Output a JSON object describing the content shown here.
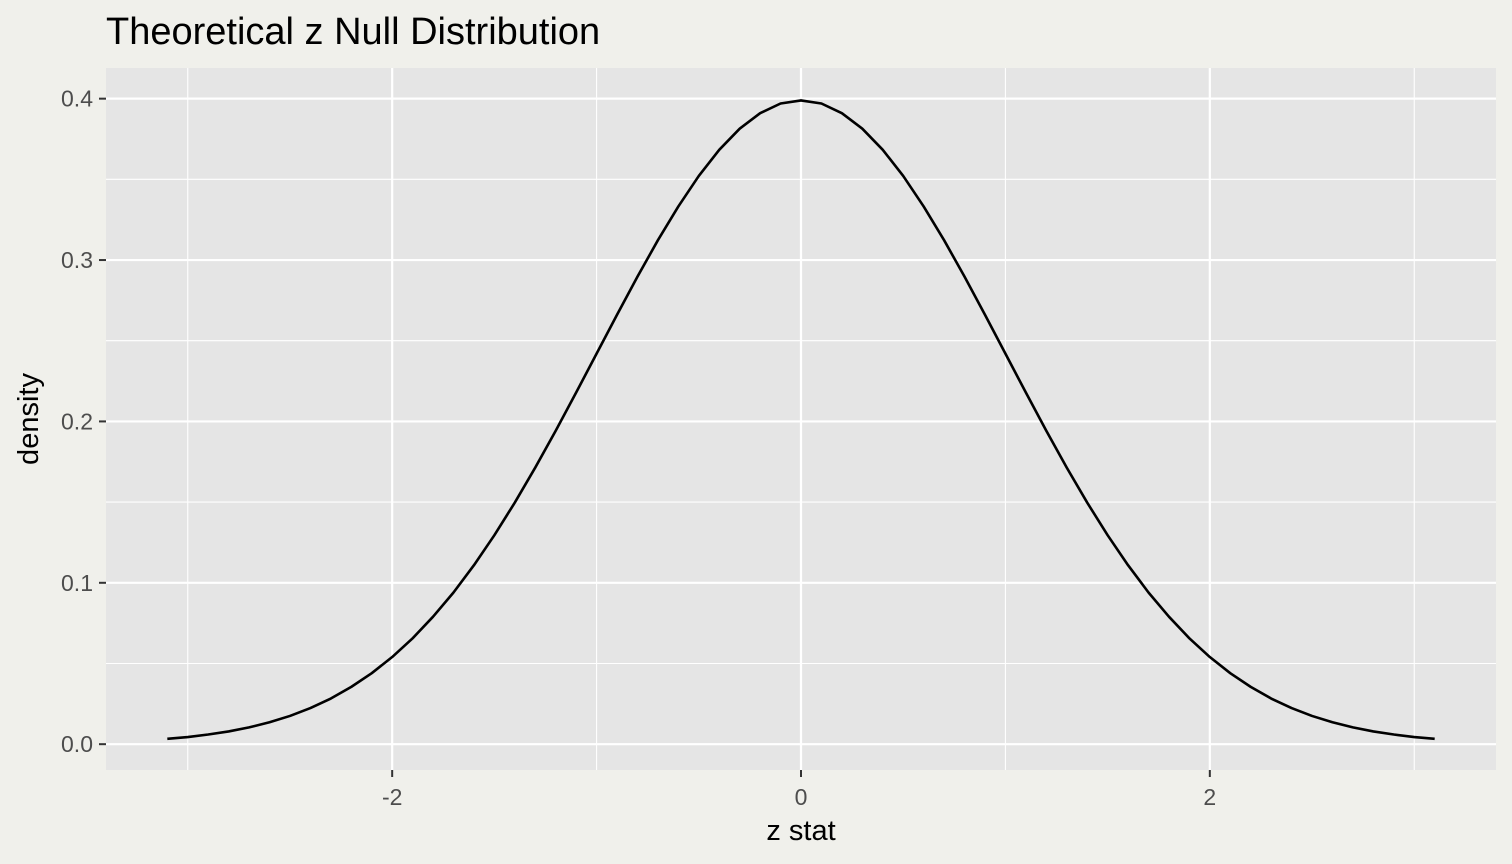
{
  "chart_data": {
    "type": "line",
    "title": "Theoretical z Null Distribution",
    "xlabel": "z stat",
    "ylabel": "density",
    "xlim": [
      -3.4,
      3.4
    ],
    "ylim": [
      -0.016,
      0.419
    ],
    "x_ticks": [
      -2,
      0,
      2
    ],
    "x_tick_labels": [
      "-2",
      "0",
      "2"
    ],
    "y_ticks": [
      0.0,
      0.1,
      0.2,
      0.3,
      0.4
    ],
    "y_tick_labels": [
      "0.0",
      "0.1",
      "0.2",
      "0.3",
      "0.4"
    ],
    "x_minor_ticks": [
      -3,
      -1,
      1,
      3
    ],
    "y_minor_ticks": [
      0.05,
      0.15,
      0.25,
      0.35
    ],
    "grid": true,
    "colors": {
      "panel": "#e5e5e5",
      "grid": "#ffffff",
      "line": "#000000",
      "background": "#f0f0eb"
    },
    "series": [
      {
        "x": [
          -3.1,
          -3.0,
          -2.9,
          -2.8,
          -2.7,
          -2.6,
          -2.5,
          -2.4,
          -2.3,
          -2.2,
          -2.1,
          -2.0,
          -1.9,
          -1.8,
          -1.7,
          -1.6,
          -1.5,
          -1.4,
          -1.3,
          -1.2,
          -1.1,
          -1.0,
          -0.9,
          -0.8,
          -0.7,
          -0.6,
          -0.5,
          -0.4,
          -0.3,
          -0.2,
          -0.1,
          0.0,
          0.1,
          0.2,
          0.3,
          0.4,
          0.5,
          0.6,
          0.7,
          0.8,
          0.9,
          1.0,
          1.1,
          1.2,
          1.3,
          1.4,
          1.5,
          1.6,
          1.7,
          1.8,
          1.9,
          2.0,
          2.1,
          2.2,
          2.3,
          2.4,
          2.5,
          2.6,
          2.7,
          2.8,
          2.9,
          3.0,
          3.1
        ],
        "y": [
          0.0033,
          0.0044,
          0.006,
          0.0079,
          0.0104,
          0.0136,
          0.0175,
          0.0224,
          0.0283,
          0.0355,
          0.044,
          0.054,
          0.0656,
          0.079,
          0.094,
          0.1109,
          0.1295,
          0.1497,
          0.1714,
          0.1942,
          0.2179,
          0.242,
          0.2661,
          0.2897,
          0.3123,
          0.3332,
          0.3521,
          0.3683,
          0.3814,
          0.391,
          0.397,
          0.3989,
          0.397,
          0.391,
          0.3814,
          0.3683,
          0.3521,
          0.3332,
          0.3123,
          0.2897,
          0.2661,
          0.242,
          0.2179,
          0.1942,
          0.1714,
          0.1497,
          0.1295,
          0.1109,
          0.094,
          0.079,
          0.0656,
          0.054,
          0.044,
          0.0355,
          0.0283,
          0.0224,
          0.0175,
          0.0136,
          0.0104,
          0.0079,
          0.006,
          0.0044,
          0.0033
        ]
      }
    ]
  }
}
